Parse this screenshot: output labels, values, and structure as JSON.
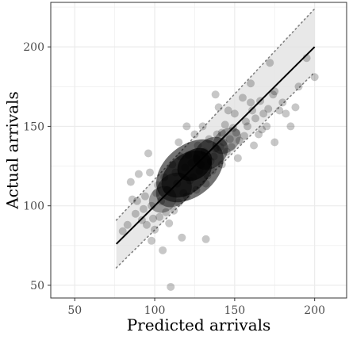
{
  "chart_data": {
    "type": "scatter",
    "title": "",
    "xlabel": "Predicted arrivals",
    "ylabel": "Actual arrivals",
    "xlim": [
      35,
      220
    ],
    "ylim": [
      42,
      228
    ],
    "xticks": [
      50,
      100,
      150,
      200
    ],
    "yticks": [
      50,
      100,
      150,
      200
    ],
    "grid": true,
    "legend": "none",
    "colors": {
      "points": "#000000",
      "band_fill": "#e0e0e0",
      "fit_line": "#000000",
      "band_edges": "#808080",
      "grid": "#ebebeb",
      "panel_border": "#333333"
    },
    "fit_line": {
      "x": [
        76,
        200
      ],
      "y": [
        76,
        200
      ]
    },
    "prediction_band": {
      "x": [
        76,
        200
      ],
      "lower": [
        61,
        184
      ],
      "upper": [
        91,
        224
      ]
    },
    "points": [
      [
        110,
        49
      ],
      [
        195,
        193
      ],
      [
        200,
        181
      ],
      [
        188,
        162
      ],
      [
        175,
        172
      ],
      [
        180,
        165
      ],
      [
        168,
        158
      ],
      [
        160,
        177
      ],
      [
        172,
        190
      ],
      [
        190,
        175
      ],
      [
        150,
        158
      ],
      [
        165,
        145
      ],
      [
        155,
        168
      ],
      [
        146,
        160
      ],
      [
        140,
        162
      ],
      [
        170,
        150
      ],
      [
        162,
        138
      ],
      [
        158,
        150
      ],
      [
        142,
        146
      ],
      [
        185,
        150
      ],
      [
        175,
        140
      ],
      [
        138,
        170
      ],
      [
        160,
        165
      ],
      [
        152,
        130
      ],
      [
        130,
        150
      ],
      [
        125,
        145
      ],
      [
        120,
        150
      ],
      [
        115,
        140
      ],
      [
        96,
        133
      ],
      [
        90,
        120
      ],
      [
        85,
        115
      ],
      [
        80,
        84
      ],
      [
        83,
        88
      ],
      [
        88,
        95
      ],
      [
        92,
        91
      ],
      [
        100,
        85
      ],
      [
        98,
        78
      ],
      [
        105,
        72
      ],
      [
        117,
        80
      ],
      [
        132,
        79
      ],
      [
        112,
        97
      ],
      [
        118,
        108
      ],
      [
        122,
        116
      ],
      [
        128,
        122
      ],
      [
        135,
        128
      ],
      [
        126,
        130
      ],
      [
        108,
        110
      ],
      [
        113,
        121
      ],
      [
        119,
        124
      ],
      [
        124,
        118
      ],
      [
        131,
        134
      ],
      [
        138,
        136
      ],
      [
        143,
        140
      ],
      [
        147,
        142
      ],
      [
        151,
        146
      ],
      [
        104,
        103
      ],
      [
        98,
        100
      ],
      [
        101,
        108
      ],
      [
        107,
        96
      ],
      [
        94,
        106
      ],
      [
        114,
        114
      ],
      [
        123,
        127
      ],
      [
        129,
        126
      ],
      [
        133,
        119
      ],
      [
        137,
        131
      ],
      [
        141,
        137
      ],
      [
        145,
        134
      ],
      [
        149,
        149
      ],
      [
        153,
        141
      ],
      [
        157,
        153
      ],
      [
        163,
        155
      ],
      [
        167,
        148
      ],
      [
        171,
        161
      ],
      [
        116,
        131
      ],
      [
        111,
        126
      ],
      [
        106,
        118
      ],
      [
        102,
        113
      ],
      [
        97,
        121
      ],
      [
        93,
        98
      ],
      [
        89,
        103
      ],
      [
        86,
        104
      ],
      [
        121,
        132
      ],
      [
        127,
        138
      ],
      [
        134,
        142
      ],
      [
        139,
        145
      ],
      [
        144,
        151
      ],
      [
        148,
        137
      ],
      [
        156,
        144
      ],
      [
        161,
        160
      ],
      [
        166,
        166
      ],
      [
        174,
        170
      ],
      [
        178,
        160
      ],
      [
        182,
        158
      ],
      [
        109,
        89
      ],
      [
        103,
        93
      ],
      [
        99,
        92
      ],
      [
        95,
        88
      ],
      [
        115,
        102
      ],
      [
        120,
        106
      ],
      [
        126,
        110
      ],
      [
        132,
        114
      ],
      [
        136,
        122
      ],
      [
        142,
        126
      ]
    ]
  }
}
